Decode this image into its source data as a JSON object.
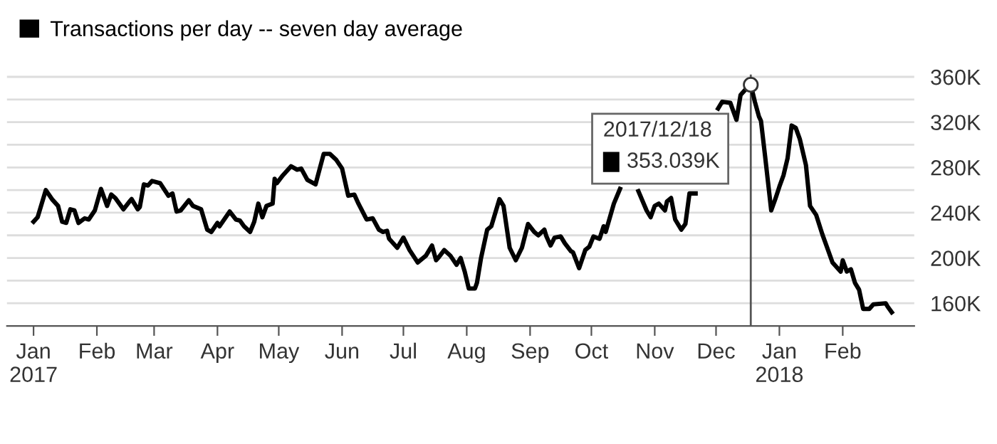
{
  "chart_data": {
    "type": "line",
    "x": [
      "2017-01-01",
      "2017-01-03",
      "2017-01-07",
      "2017-01-10",
      "2017-01-13",
      "2017-01-15",
      "2017-01-17",
      "2017-01-19",
      "2017-01-21",
      "2017-01-23",
      "2017-01-26",
      "2017-01-28",
      "2017-01-31",
      "2017-02-03",
      "2017-02-06",
      "2017-02-08",
      "2017-02-10",
      "2017-02-14",
      "2017-02-17",
      "2017-02-18",
      "2017-02-21",
      "2017-02-22",
      "2017-02-24",
      "2017-02-26",
      "2017-02-28",
      "2017-03-04",
      "2017-03-08",
      "2017-03-10",
      "2017-03-12",
      "2017-03-14",
      "2017-03-18",
      "2017-03-20",
      "2017-03-24",
      "2017-03-27",
      "2017-03-29",
      "2017-04-01",
      "2017-04-02",
      "2017-04-07",
      "2017-04-10",
      "2017-04-12",
      "2017-04-14",
      "2017-04-17",
      "2017-04-19",
      "2017-04-21",
      "2017-04-23",
      "2017-04-25",
      "2017-04-28",
      "2017-04-29",
      "2017-04-30",
      "2017-05-03",
      "2017-05-07",
      "2017-05-10",
      "2017-05-12",
      "2017-05-15",
      "2017-05-19",
      "2017-05-23",
      "2017-05-26",
      "2017-05-29",
      "2017-06-01",
      "2017-06-04",
      "2017-06-07",
      "2017-06-09",
      "2017-06-13",
      "2017-06-16",
      "2017-06-19",
      "2017-06-21",
      "2017-06-23",
      "2017-06-24",
      "2017-06-28",
      "2017-07-01",
      "2017-07-04",
      "2017-07-08",
      "2017-07-12",
      "2017-07-15",
      "2017-07-17",
      "2017-07-18",
      "2017-07-21",
      "2017-07-24",
      "2017-07-27",
      "2017-07-29",
      "2017-07-31",
      "2017-08-02",
      "2017-08-05",
      "2017-08-06",
      "2017-08-08",
      "2017-08-11",
      "2017-08-13",
      "2017-08-17",
      "2017-08-19",
      "2017-08-22",
      "2017-08-25",
      "2017-08-28",
      "2017-08-31",
      "2017-09-03",
      "2017-09-05",
      "2017-09-08",
      "2017-09-09",
      "2017-09-11",
      "2017-09-13",
      "2017-09-16",
      "2017-09-18",
      "2017-09-21",
      "2017-09-22",
      "2017-09-25",
      "2017-09-28",
      "2017-09-30",
      "2017-10-02",
      "2017-10-05",
      "2017-10-07",
      "2017-10-08",
      "2017-10-12",
      "2017-10-15",
      "2017-10-20",
      "2017-10-24",
      "2017-10-28",
      "2017-10-30",
      "2017-11-01",
      "2017-11-03",
      "2017-11-06",
      "2017-11-07",
      "2017-11-09",
      "2017-11-11",
      "2017-11-14",
      "2017-11-16",
      "2017-11-18",
      "2017-11-21",
      "2017-11-23",
      "2017-11-28",
      "2017-12-02",
      "2017-12-04",
      "2017-12-08",
      "2017-12-11",
      "2017-12-13",
      "2017-12-15",
      "2017-12-18",
      "2017-12-20",
      "2017-12-22",
      "2017-12-23",
      "2017-12-25",
      "2017-12-28",
      "2017-12-30",
      "2018-01-01",
      "2018-01-03",
      "2018-01-05",
      "2018-01-07",
      "2018-01-09",
      "2018-01-11",
      "2018-01-14",
      "2018-01-16",
      "2018-01-19",
      "2018-01-22",
      "2018-01-24",
      "2018-01-27",
      "2018-01-31",
      "2018-02-01",
      "2018-02-03",
      "2018-02-05",
      "2018-02-07",
      "2018-02-09",
      "2018-02-11",
      "2018-02-14",
      "2018-02-16",
      "2018-02-22",
      "2018-02-23",
      "2018-02-25"
    ],
    "series": [
      {
        "name": "Transactions per day -- seven day average",
        "color": "#000000",
        "values": [
          232,
          236,
          260,
          252,
          246,
          232,
          231,
          243,
          242,
          231,
          235,
          234,
          242,
          261,
          246,
          256,
          253,
          243,
          250,
          252,
          243,
          245,
          265,
          264,
          268,
          266,
          255,
          257,
          241,
          242,
          251,
          246,
          243,
          225,
          223,
          231,
          228,
          241,
          234,
          233,
          228,
          223,
          232,
          248,
          236,
          246,
          248,
          270,
          266,
          273,
          281,
          278,
          279,
          269,
          265,
          292,
          292,
          287,
          279,
          255,
          256,
          248,
          234,
          235,
          225,
          223,
          224,
          217,
          209,
          218,
          207,
          196,
          202,
          211,
          198,
          200,
          207,
          202,
          194,
          200,
          188,
          173,
          173,
          178,
          200,
          225,
          228,
          252,
          246,
          209,
          198,
          209,
          230,
          223,
          220,
          225,
          219,
          211,
          218,
          219,
          213,
          206,
          205,
          191,
          207,
          210,
          219,
          217,
          228,
          223,
          248,
          261,
          null,
          259,
          242,
          236,
          246,
          248,
          242,
          250,
          253,
          234,
          225,
          230,
          257,
          257,
          null,
          null,
          332,
          338,
          337,
          322,
          344,
          348,
          353,
          338,
          325,
          321,
          290,
          242,
          252,
          263,
          273,
          288,
          317,
          315,
          305,
          282,
          246,
          238,
          221,
          211,
          196,
          188,
          198,
          188,
          190,
          178,
          172,
          155,
          155,
          159,
          160,
          157,
          152
        ]
      }
    ],
    "xlim": [
      "2016-12-19",
      "2018-03-08"
    ],
    "xticks": [
      {
        "value": "2017-01-01",
        "label": "Jan\n2017"
      },
      {
        "value": "2017-02-01",
        "label": "Feb"
      },
      {
        "value": "2017-03-01",
        "label": "Mar"
      },
      {
        "value": "2017-04-01",
        "label": "Apr"
      },
      {
        "value": "2017-05-01",
        "label": "May"
      },
      {
        "value": "2017-06-01",
        "label": "Jun"
      },
      {
        "value": "2017-07-01",
        "label": "Jul"
      },
      {
        "value": "2017-08-01",
        "label": "Aug"
      },
      {
        "value": "2017-09-01",
        "label": "Sep"
      },
      {
        "value": "2017-10-01",
        "label": "Oct"
      },
      {
        "value": "2017-11-01",
        "label": "Nov"
      },
      {
        "value": "2017-12-01",
        "label": "Dec"
      },
      {
        "value": "2018-01-01",
        "label": "Jan\n2018"
      },
      {
        "value": "2018-02-01",
        "label": "Feb"
      }
    ],
    "ylim": [
      140,
      362
    ],
    "yticks": [
      {
        "value": 160,
        "label": "160K"
      },
      {
        "value": 180,
        "label": null
      },
      {
        "value": 200,
        "label": "200K"
      },
      {
        "value": 220,
        "label": null
      },
      {
        "value": 240,
        "label": "240K"
      },
      {
        "value": 260,
        "label": null
      },
      {
        "value": 280,
        "label": "280K"
      },
      {
        "value": 300,
        "label": null
      },
      {
        "value": 320,
        "label": "320K"
      },
      {
        "value": 340,
        "label": null
      },
      {
        "value": 360,
        "label": "360K"
      }
    ],
    "grid": "y",
    "legend": "top left",
    "marker": "none",
    "line_style": "solid",
    "ref_lines": [
      {
        "axis": "x",
        "value": "2017-12-18",
        "color": "#555555"
      }
    ],
    "annotations": [
      "2017/12/18",
      "353.039K"
    ]
  }
}
